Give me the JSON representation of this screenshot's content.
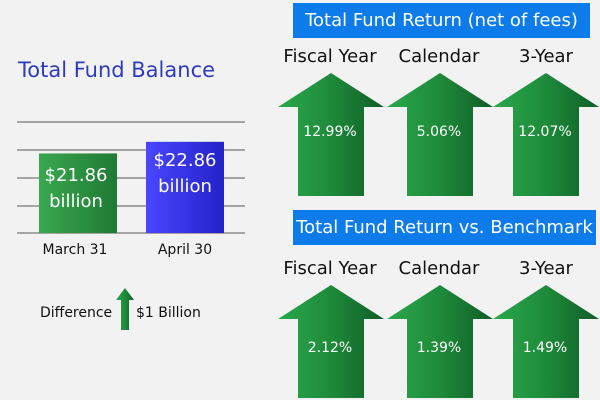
{
  "colors": {
    "banner": "#0d7bea",
    "arrow_green": "#1f8a3c",
    "bar_green": "#2e9a43",
    "bar_blue": "#2f2ff0",
    "title_blue": "#2d3bbd"
  },
  "chart_data": [
    {
      "type": "bar",
      "title": "Total Fund Balance",
      "categories": [
        "March 31",
        "April 30"
      ],
      "values": [
        21.86,
        22.86
      ],
      "labels": [
        "$21.86 billion",
        "$22.86 billion"
      ],
      "bar_text": [
        {
          "amount": "$21.86",
          "unit": "billion"
        },
        {
          "amount": "$22.86",
          "unit": "billion"
        }
      ],
      "difference_label": "Difference",
      "difference_value": "$1 Billion",
      "difference_icon": "up-arrow-icon"
    },
    {
      "type": "table",
      "title": "Total Fund Return (net of fees)",
      "categories": [
        "Fiscal Year",
        "Calendar",
        "3-Year"
      ],
      "values": [
        12.99,
        5.06,
        12.07
      ],
      "labels": [
        "12.99%",
        "5.06%",
        "12.07%"
      ],
      "icon": "up-arrow-icon"
    },
    {
      "type": "table",
      "title": "Total Fund Return vs. Benchmark",
      "categories": [
        "Fiscal Year",
        "Calendar",
        "3-Year"
      ],
      "values": [
        2.12,
        1.39,
        1.49
      ],
      "labels": [
        "2.12%",
        "1.39%",
        "1.49%"
      ],
      "icon": "up-arrow-icon"
    }
  ]
}
